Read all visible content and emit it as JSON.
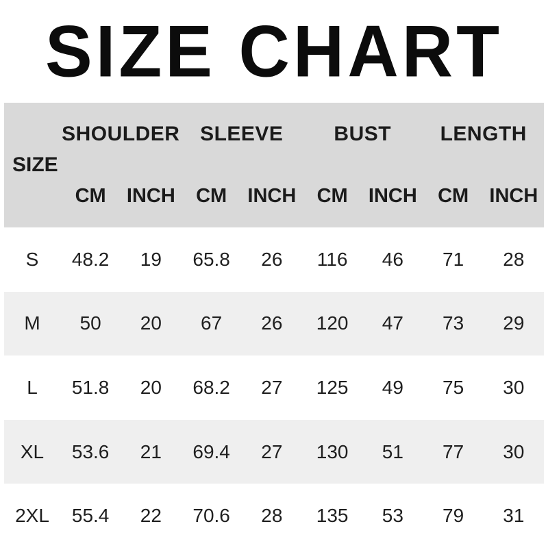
{
  "title": "SIZE CHART",
  "chart_data": {
    "type": "table",
    "title": "SIZE CHART",
    "size_column_label": "SIZE",
    "groups": [
      {
        "label": "SHOULDER",
        "units": [
          "CM",
          "INCH"
        ]
      },
      {
        "label": "SLEEVE",
        "units": [
          "CM",
          "INCH"
        ]
      },
      {
        "label": "BUST",
        "units": [
          "CM",
          "INCH"
        ]
      },
      {
        "label": "LENGTH",
        "units": [
          "CM",
          "INCH"
        ]
      }
    ],
    "rows": [
      {
        "size": "S",
        "values": [
          "48.2",
          "19",
          "65.8",
          "26",
          "116",
          "46",
          "71",
          "28"
        ]
      },
      {
        "size": "M",
        "values": [
          "50",
          "20",
          "67",
          "26",
          "120",
          "47",
          "73",
          "29"
        ]
      },
      {
        "size": "L",
        "values": [
          "51.8",
          "20",
          "68.2",
          "27",
          "125",
          "49",
          "75",
          "30"
        ]
      },
      {
        "size": "XL",
        "values": [
          "53.6",
          "21",
          "69.4",
          "27",
          "130",
          "51",
          "77",
          "30"
        ]
      },
      {
        "size": "2XL",
        "values": [
          "55.4",
          "22",
          "70.6",
          "28",
          "135",
          "53",
          "79",
          "31"
        ]
      }
    ]
  },
  "colors": {
    "header_bg": "#d9d9d9",
    "stripe_bg": "#efefef",
    "text": "#1b1b1b"
  }
}
